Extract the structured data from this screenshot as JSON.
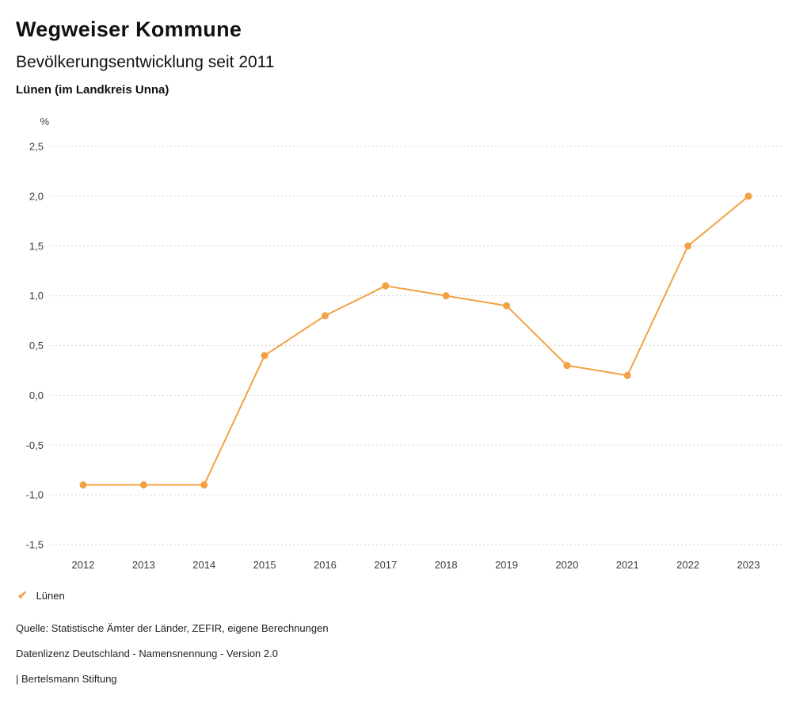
{
  "header": {
    "title": "Wegweiser Kommune",
    "subtitle": "Bevölkerungsentwicklung seit 2011",
    "location": "Lünen (im Landkreis Unna)"
  },
  "chart_data": {
    "type": "line",
    "title": "Bevölkerungsentwicklung seit 2011",
    "subtitle": "Lünen (im Landkreis Unna)",
    "unit_label": "%",
    "xlabel": "",
    "ylabel": "%",
    "categories": [
      "2012",
      "2013",
      "2014",
      "2015",
      "2016",
      "2017",
      "2018",
      "2019",
      "2020",
      "2021",
      "2022",
      "2023"
    ],
    "series": [
      {
        "name": "Lünen",
        "color": "#F2A143",
        "values": [
          -0.9,
          -0.9,
          -0.9,
          0.4,
          0.8,
          1.1,
          1.0,
          0.9,
          0.3,
          0.2,
          1.5,
          2.0
        ]
      }
    ],
    "ylim": [
      -1.5,
      2.5
    ],
    "ytick_step": 0.5,
    "yticks": [
      {
        "value": 2.5,
        "label": "2,5"
      },
      {
        "value": 2.0,
        "label": "2,0"
      },
      {
        "value": 1.5,
        "label": "1,5"
      },
      {
        "value": 1.0,
        "label": "1,0"
      },
      {
        "value": 0.5,
        "label": "0,5"
      },
      {
        "value": 0.0,
        "label": "0,0"
      },
      {
        "value": -0.5,
        "label": "-0,5"
      },
      {
        "value": -1.0,
        "label": "-1,0"
      },
      {
        "value": -1.5,
        "label": "-1,5"
      }
    ],
    "grid": "horizontal-dotted",
    "legend_position": "bottom-left"
  },
  "legend": {
    "check_icon": "✔",
    "items": [
      {
        "label": "Lünen",
        "color": "#F2A143"
      }
    ]
  },
  "footer": {
    "source": "Quelle: Statistische Ämter der Länder, ZEFIR, eigene Berechnungen",
    "license": "Datenlizenz Deutschland - Namensnennung - Version 2.0",
    "attribution": "| Bertelsmann Stiftung"
  }
}
